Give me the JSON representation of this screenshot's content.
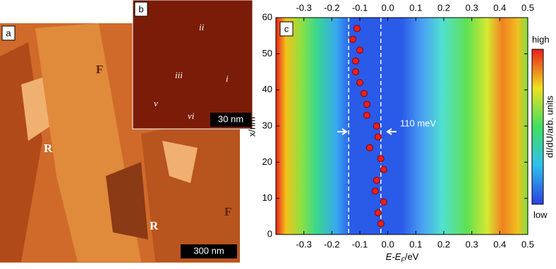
{
  "panels": {
    "a": {
      "label": "a",
      "scale_bar": "300 nm",
      "regions": [
        "F",
        "R",
        "R",
        "F"
      ]
    },
    "b": {
      "label": "b",
      "scale_bar": "30 nm",
      "markers": [
        "ii",
        "iii",
        "i",
        "v",
        "vi"
      ]
    }
  },
  "chart_data": {
    "type": "scatter",
    "label": "c",
    "xlabel": {
      "main": "E-E",
      "sub": "F",
      "unit": "/eV"
    },
    "ylabel": "x/nm",
    "xlim": [
      -0.4,
      0.5
    ],
    "ylim": [
      0,
      60
    ],
    "xticks": [
      -0.3,
      -0.2,
      -0.1,
      {
        "value": 0,
        "label": "0.0"
      },
      0.1,
      0.2,
      0.3,
      0.4,
      0.5
    ],
    "yticks": [
      0,
      10,
      20,
      30,
      40,
      50,
      60
    ],
    "color": "#e8201a",
    "x": [
      -0.11,
      -0.125,
      -0.1,
      -0.115,
      -0.115,
      -0.1,
      -0.085,
      -0.075,
      -0.075,
      -0.04,
      -0.035,
      -0.065,
      -0.025,
      -0.015,
      -0.04,
      -0.045,
      -0.015,
      -0.035,
      -0.025
    ],
    "y": [
      57,
      54,
      51,
      48,
      45,
      42,
      39,
      36,
      33,
      30,
      27,
      24,
      21,
      18,
      15,
      12,
      9,
      6,
      3
    ],
    "vlines": [
      -0.14,
      -0.025
    ],
    "annotation": "110 meV",
    "colorbar": {
      "label": "dI/dU/arb. units",
      "high": "high",
      "low": "low"
    }
  }
}
